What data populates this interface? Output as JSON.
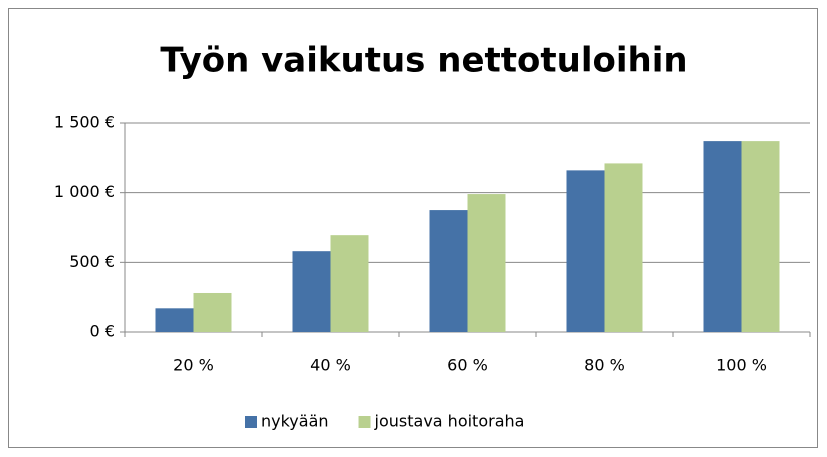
{
  "chart_data": {
    "type": "bar",
    "title": "Työn vaikutus nettotuloihin",
    "categories": [
      "20 %",
      "40 %",
      "60 %",
      "80 %",
      "100 %"
    ],
    "series": [
      {
        "name": "nykyään",
        "color": "#4572a7",
        "values": [
          170,
          580,
          875,
          1160,
          1370
        ]
      },
      {
        "name": "joustava hoitoraha",
        "color": "#b9d08f",
        "values": [
          280,
          695,
          990,
          1210,
          1370
        ]
      }
    ],
    "ylim": [
      0,
      1500
    ],
    "yticks": [
      {
        "value": 0,
        "label": "0 €"
      },
      {
        "value": 500,
        "label": "500 €"
      },
      {
        "value": 1000,
        "label": "1 000 €"
      },
      {
        "value": 1500,
        "label": "1 500 €"
      }
    ],
    "grid": true,
    "legend": "bottom"
  }
}
